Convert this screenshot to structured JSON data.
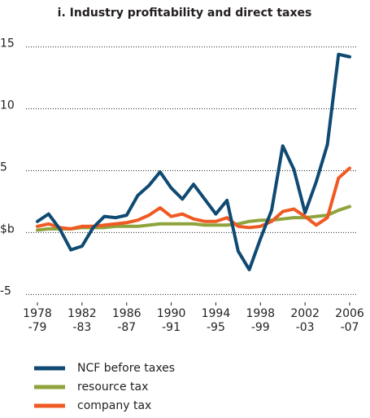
{
  "chart_data": {
    "type": "line",
    "title": "i. Industry profitability and direct taxes",
    "categories": [
      [
        "1978",
        "-79"
      ],
      null,
      null,
      null,
      [
        "1982",
        "-83"
      ],
      null,
      null,
      null,
      [
        "1986",
        "-87"
      ],
      null,
      null,
      null,
      [
        "1990",
        "-91"
      ],
      null,
      null,
      null,
      [
        "1994",
        "-95"
      ],
      null,
      null,
      null,
      [
        "1998",
        "-99"
      ],
      null,
      null,
      null,
      [
        "2002",
        "-03"
      ],
      null,
      null,
      null,
      [
        "2006",
        "-07"
      ]
    ],
    "series": [
      {
        "name": "NCF before taxes",
        "color": "#0f4a73",
        "values": [
          0.9,
          1.5,
          0.3,
          -1.4,
          -1.1,
          0.4,
          1.3,
          1.2,
          1.4,
          3.0,
          3.8,
          4.9,
          3.6,
          2.7,
          3.9,
          2.7,
          1.5,
          2.6,
          -1.5,
          -3.0,
          -0.5,
          1.8,
          7.0,
          5.1,
          1.6,
          4.1,
          7.1,
          14.4,
          14.2
        ]
      },
      {
        "name": "resource tax",
        "color": "#8ea33b",
        "values": [
          0.2,
          0.3,
          0.3,
          0.3,
          0.4,
          0.4,
          0.4,
          0.5,
          0.5,
          0.5,
          0.6,
          0.7,
          0.7,
          0.7,
          0.7,
          0.6,
          0.6,
          0.6,
          0.7,
          0.9,
          1.0,
          1.0,
          1.1,
          1.2,
          1.2,
          1.3,
          1.4,
          1.8,
          2.1
        ]
      },
      {
        "name": "company tax",
        "color": "#ef5a24",
        "values": [
          0.5,
          0.7,
          0.4,
          0.3,
          0.5,
          0.5,
          0.6,
          0.7,
          0.8,
          1.0,
          1.4,
          2.0,
          1.3,
          1.5,
          1.1,
          0.9,
          0.9,
          1.2,
          0.5,
          0.4,
          0.5,
          0.9,
          1.7,
          1.9,
          1.3,
          0.6,
          1.2,
          4.4,
          5.2
        ]
      }
    ],
    "ylim": [
      -5.9,
      15.5
    ],
    "yticks": [
      -5,
      {
        "value": 0,
        "label": "$b"
      },
      5,
      10,
      15
    ],
    "grid": true,
    "legend": "bottom"
  }
}
